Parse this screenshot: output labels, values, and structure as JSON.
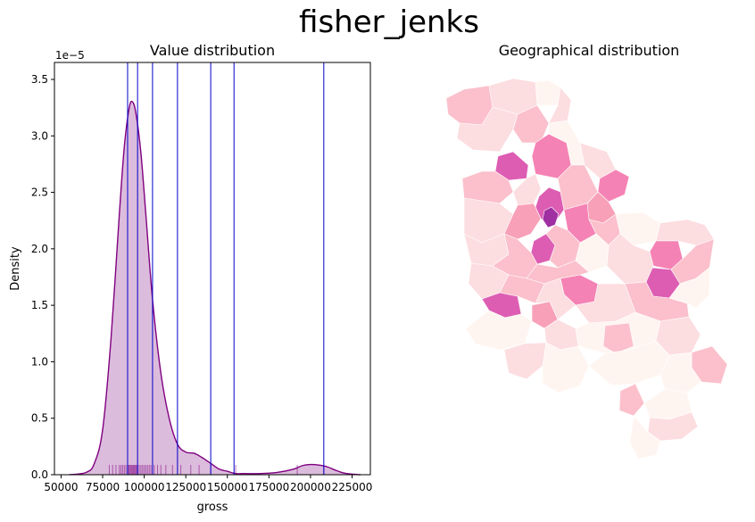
{
  "figure": {
    "suptitle": "fisher_jenks"
  },
  "chart_data": [
    {
      "type": "area",
      "title": "Value distribution",
      "xlabel": "gross",
      "ylabel": "Density",
      "y_offset_label": "1e−5",
      "xlim": [
        46000,
        236000
      ],
      "ylim": [
        0,
        3.65e-05
      ],
      "x_ticks": [
        50000,
        75000,
        100000,
        125000,
        150000,
        175000,
        200000,
        225000
      ],
      "x_tick_labels": [
        "50000",
        "75000",
        "100000",
        "125000",
        "150000",
        "175000",
        "200000",
        "225000"
      ],
      "y_ticks": [
        0,
        0.5,
        1.0,
        1.5,
        2.0,
        2.5,
        3.0,
        3.5
      ],
      "y_tick_labels": [
        "0.0",
        "0.5",
        "1.0",
        "1.5",
        "2.0",
        "2.5",
        "3.0",
        "3.5"
      ],
      "series": [
        {
          "kind": "kde",
          "color": "#800080",
          "fill_color": "#dcbcdd",
          "x": [
            55000,
            65000,
            70000,
            75000,
            80000,
            85000,
            88000,
            91000,
            93000,
            95000,
            98000,
            101000,
            105000,
            110000,
            115000,
            120000,
            125000,
            130000,
            135000,
            140000,
            145000,
            150000,
            155000,
            160000,
            170000,
            180000,
            190000,
            195000,
            200000,
            205000,
            210000,
            215000,
            220000,
            225000,
            230000
          ],
          "y": [
            0.0,
            2e-07,
            1e-06,
            4e-06,
            1.2e-05,
            2.3e-05,
            2.9e-05,
            3.25e-05,
            3.3e-05,
            3.2e-05,
            2.85e-05,
            2.3e-05,
            1.55e-05,
            9e-06,
            5e-06,
            2.7e-06,
            2e-06,
            1.9e-06,
            1.5e-06,
            1e-06,
            5e-07,
            3e-07,
            1e-07,
            1e-07,
            1e-07,
            2e-07,
            5e-07,
            8e-07,
            9e-07,
            8.5e-07,
            7e-07,
            4e-07,
            1.5e-07,
            5e-08,
            0.0
          ]
        }
      ],
      "rug": {
        "color": "#800080",
        "values": [
          79000,
          81000,
          83000,
          85000,
          86000,
          87000,
          88000,
          89000,
          90000,
          90500,
          91000,
          91500,
          92000,
          92500,
          93000,
          93500,
          94000,
          94500,
          95000,
          95500,
          96000,
          97000,
          98000,
          99000,
          100000,
          101000,
          102000,
          103000,
          104000,
          106000,
          108000,
          110000,
          113000,
          117000,
          122000,
          128000,
          133000,
          140000,
          155000,
          192000,
          208000
        ]
      },
      "break_lines": {
        "color": "#0000cc",
        "values": [
          90000,
          96000,
          105000,
          120000,
          140000,
          154000,
          208000
        ]
      }
    },
    {
      "type": "map",
      "title": "Geographical distribution",
      "palette": [
        "#fff5f0",
        "#fcdde0",
        "#fbc0cb",
        "#f8a0b8",
        "#f582b4",
        "#dd5db3",
        "#9f30a2"
      ]
    }
  ]
}
